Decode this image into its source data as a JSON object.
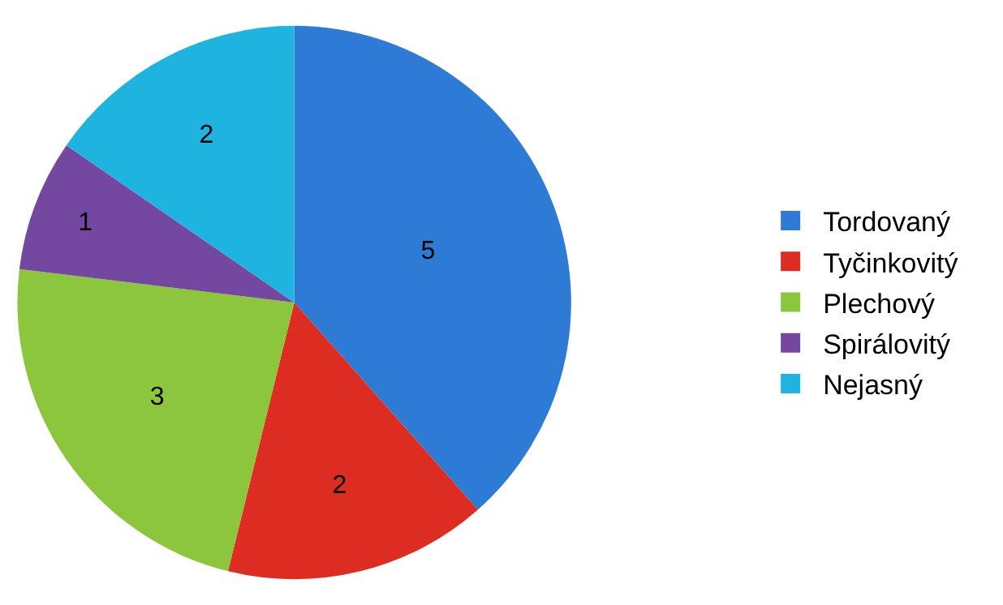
{
  "chart_data": {
    "type": "pie",
    "categories": [
      "Tordovaný",
      "Tyčinkovitý",
      "Plechový",
      "Spirálovitý",
      "Nejasný"
    ],
    "values": [
      5,
      2,
      3,
      1,
      2
    ],
    "colors": [
      "#2e7bd6",
      "#dd2c22",
      "#8cc63c",
      "#7448a0",
      "#1fb3df"
    ],
    "data_labels": true,
    "legend": "right"
  }
}
